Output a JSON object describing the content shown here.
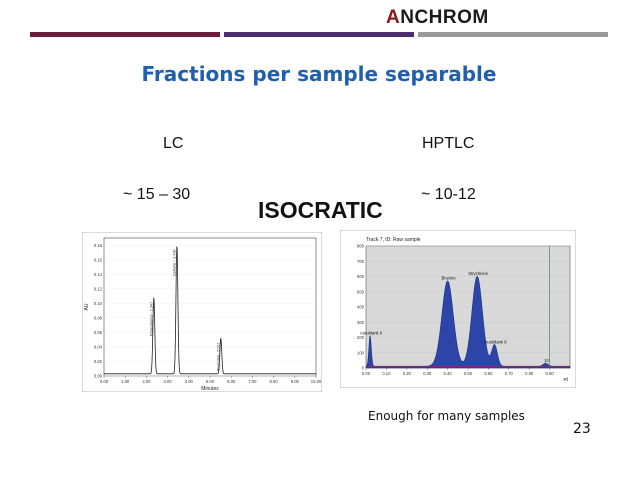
{
  "logo": {
    "first_letter": "A",
    "rest": "NCHROM"
  },
  "colors": {
    "bar_left": "#6b1f3d",
    "bar_mid": "#4a2d6e",
    "bar_right": "#9a9a9a",
    "title": "#1f5fae"
  },
  "slide": {
    "title": "Fractions per sample separable",
    "left_heading": "LC",
    "right_heading": "HPTLC",
    "left_value": "~ 15 – 30",
    "right_value": "~ 10-12",
    "center_label": "ISOCRATIC",
    "caption": "Enough for many samples",
    "page_number": "23"
  },
  "chart_data": [
    {
      "type": "line",
      "x_ticks": [
        "0.00",
        "1.00",
        "2.00",
        "3.00",
        "4.00",
        "5.00",
        "6.00",
        "7.00",
        "8.00",
        "9.00",
        "10.00"
      ],
      "y_ticks": [
        "0.00",
        "0.02",
        "0.04",
        "0.06",
        "0.08",
        "0.10",
        "0.12",
        "0.14",
        "0.16",
        "0.18"
      ],
      "xlabel": "Minutes",
      "ylabel": "AU",
      "xlim": [
        0,
        10
      ],
      "ylim": [
        0,
        0.19
      ],
      "peaks": [
        {
          "x": 2.35,
          "height": 0.105,
          "label": "Paracetamol - 2.347"
        },
        {
          "x": 3.44,
          "height": 0.177,
          "label": "Caffeine - 3.436"
        },
        {
          "x": 5.51,
          "height": 0.049,
          "label": "Ibuprofen - 5.511"
        }
      ]
    },
    {
      "type": "area",
      "header": "Track 7, ID: Raw sample",
      "x_ticks": [
        "0.00",
        "0.10",
        "0.20",
        "0.30",
        "0.40",
        "0.50",
        "0.60",
        "0.70",
        "0.80",
        "0.90"
      ],
      "y_ticks": [
        "0",
        "100",
        "200",
        "300",
        "400",
        "500",
        "600",
        "700",
        "800"
      ],
      "xlabel": "Rf",
      "xlim": [
        0,
        1.0
      ],
      "ylim": [
        0,
        800
      ],
      "peaks": [
        {
          "x": 0.02,
          "height": 200,
          "label": "Autoblank 0"
        },
        {
          "x": 0.4,
          "height": 560,
          "label": "Brucine"
        },
        {
          "x": 0.545,
          "height": 590,
          "label": "Strychnine"
        },
        {
          "x": 0.63,
          "height": 140,
          "label": "Autoblank 8"
        },
        {
          "x": 0.88,
          "height": 20,
          "label": "10"
        }
      ]
    }
  ]
}
